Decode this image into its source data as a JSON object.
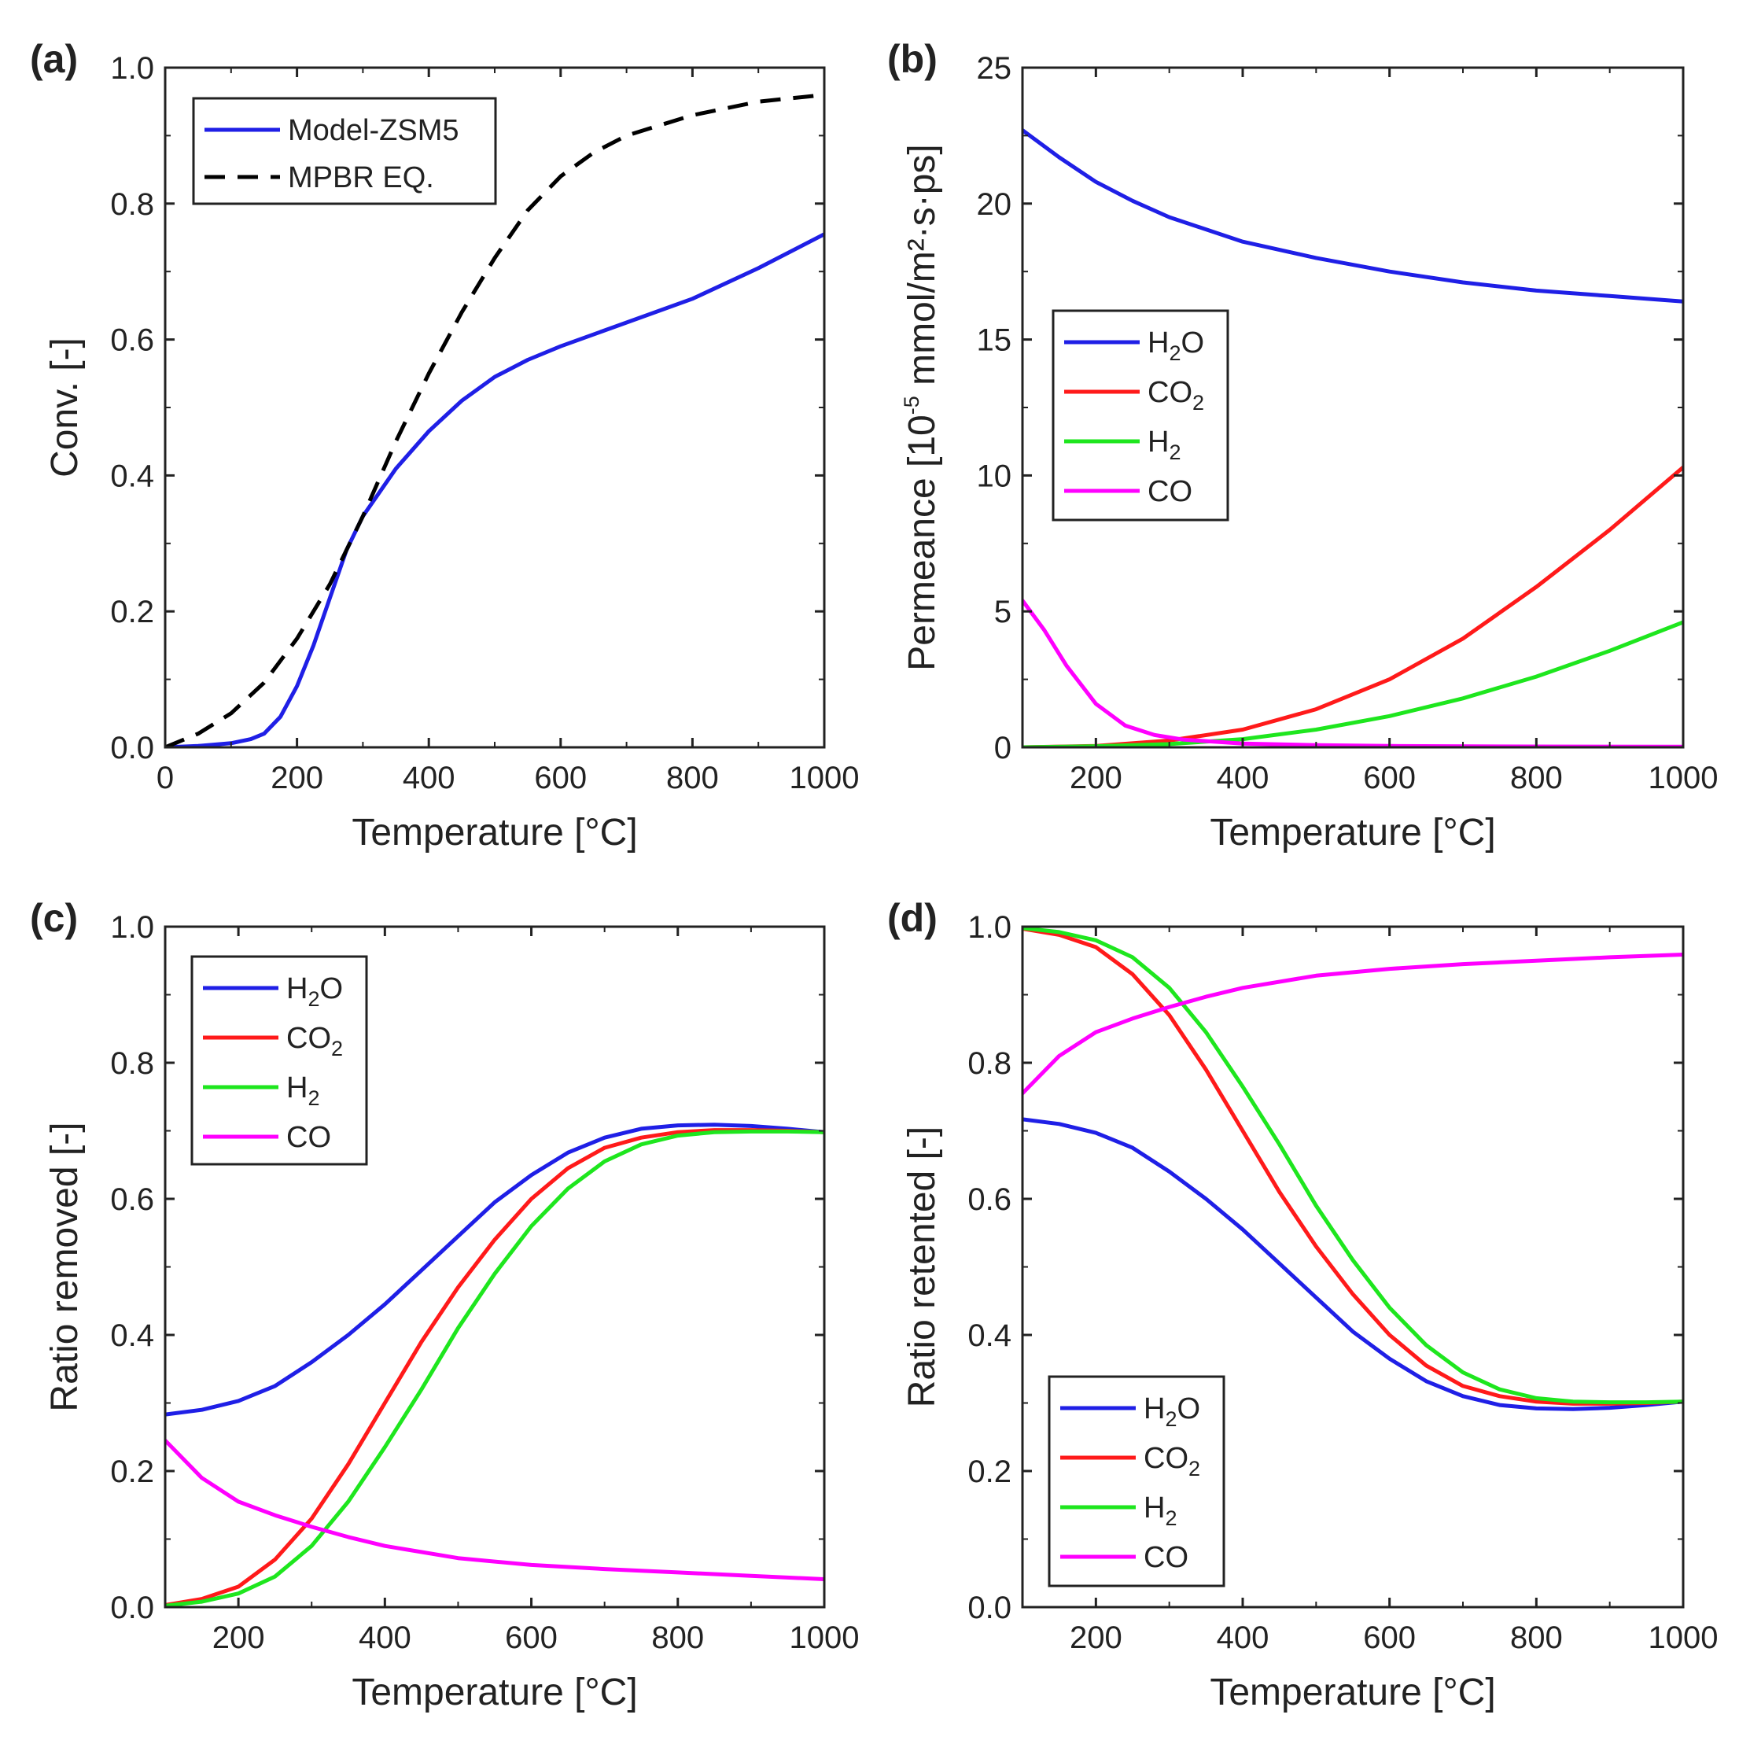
{
  "figure": {
    "panel_count": 4
  },
  "chart_data": [
    {
      "id": "a",
      "panel_label": "(a)",
      "type": "line",
      "title": "",
      "xlabel": "Temperature [°C]",
      "ylabel": "Conv. [-]",
      "xlim": [
        0,
        1000
      ],
      "ylim": [
        0,
        1.0
      ],
      "xticks": [
        0,
        200,
        400,
        600,
        800,
        1000
      ],
      "xtick_labels": [
        "0",
        "200",
        "400",
        "600",
        "800",
        "1000"
      ],
      "yticks": [
        0,
        0.2,
        0.4,
        0.6,
        0.8,
        1.0
      ],
      "ytick_labels": [
        "0.0",
        "0.2",
        "0.4",
        "0.6",
        "0.8",
        "1.0"
      ],
      "grid": false,
      "legend_position": "top-left",
      "series": [
        {
          "name": "Model-ZSM5",
          "color": "#1f1fe6",
          "dash": "solid",
          "x": [
            0,
            50,
            100,
            130,
            150,
            175,
            200,
            225,
            250,
            275,
            300,
            350,
            400,
            450,
            500,
            550,
            600,
            700,
            800,
            900,
            1000
          ],
          "y": [
            0,
            0.002,
            0.006,
            0.012,
            0.02,
            0.045,
            0.09,
            0.15,
            0.22,
            0.29,
            0.34,
            0.41,
            0.465,
            0.51,
            0.545,
            0.57,
            0.59,
            0.625,
            0.66,
            0.705,
            0.755
          ]
        },
        {
          "name": "MPBR EQ.",
          "color": "#000000",
          "dash": "dashed",
          "x": [
            0,
            50,
            100,
            150,
            200,
            250,
            300,
            350,
            400,
            450,
            500,
            550,
            600,
            650,
            700,
            750,
            800,
            850,
            900,
            950,
            1000
          ],
          "y": [
            0,
            0.02,
            0.05,
            0.095,
            0.16,
            0.24,
            0.34,
            0.45,
            0.55,
            0.64,
            0.72,
            0.79,
            0.84,
            0.875,
            0.9,
            0.915,
            0.93,
            0.94,
            0.95,
            0.955,
            0.96
          ]
        }
      ]
    },
    {
      "id": "b",
      "panel_label": "(b)",
      "type": "line",
      "title": "",
      "xlabel": "Temperature [°C]",
      "ylabel_parts": {
        "main": "Permeance [10",
        "sup": "-5",
        "tail": " mmol/m²·s·ps]"
      },
      "ylabel": "Permeance [10-5 mmol/m²·s·ps]",
      "xlim": [
        100,
        1000
      ],
      "ylim": [
        0,
        25
      ],
      "xticks": [
        200,
        400,
        600,
        800,
        1000
      ],
      "xtick_labels": [
        "200",
        "400",
        "600",
        "800",
        "1000"
      ],
      "yticks": [
        0,
        5,
        10,
        15,
        20,
        25
      ],
      "ytick_labels": [
        "0",
        "5",
        "10",
        "15",
        "20",
        "25"
      ],
      "grid": false,
      "legend_position": "center-left",
      "series": [
        {
          "name": "H2O",
          "label_main": "H",
          "label_sub": "2",
          "label_tail": "O",
          "color": "#1f1fe6",
          "x": [
            100,
            150,
            200,
            250,
            300,
            400,
            500,
            600,
            700,
            800,
            900,
            1000
          ],
          "y": [
            22.7,
            21.7,
            20.8,
            20.1,
            19.5,
            18.6,
            18.0,
            17.5,
            17.1,
            16.8,
            16.6,
            16.4
          ]
        },
        {
          "name": "CO2",
          "label_main": "CO",
          "label_sub": "2",
          "label_tail": "",
          "color": "#ff1a1a",
          "x": [
            100,
            200,
            300,
            400,
            500,
            600,
            700,
            800,
            900,
            1000
          ],
          "y": [
            0.0,
            0.05,
            0.25,
            0.65,
            1.4,
            2.5,
            4.0,
            5.9,
            8.0,
            10.3
          ]
        },
        {
          "name": "H2",
          "label_main": "H",
          "label_sub": "2",
          "label_tail": "",
          "color": "#1ee61e",
          "x": [
            100,
            200,
            300,
            400,
            500,
            600,
            700,
            800,
            900,
            1000
          ],
          "y": [
            0.0,
            0.04,
            0.12,
            0.3,
            0.65,
            1.15,
            1.8,
            2.6,
            3.55,
            4.6
          ]
        },
        {
          "name": "CO",
          "label_main": "CO",
          "label_sub": "",
          "label_tail": "",
          "color": "#ff00ff",
          "x": [
            100,
            130,
            160,
            200,
            240,
            280,
            320,
            400,
            500,
            600,
            800,
            1000
          ],
          "y": [
            5.4,
            4.3,
            3.0,
            1.6,
            0.8,
            0.45,
            0.28,
            0.14,
            0.08,
            0.05,
            0.03,
            0.02
          ]
        }
      ]
    },
    {
      "id": "c",
      "panel_label": "(c)",
      "type": "line",
      "title": "",
      "xlabel": "Temperature [°C]",
      "ylabel": "Ratio removed [-]",
      "xlim": [
        100,
        1000
      ],
      "ylim": [
        0,
        1.0
      ],
      "xticks": [
        200,
        400,
        600,
        800,
        1000
      ],
      "xtick_labels": [
        "200",
        "400",
        "600",
        "800",
        "1000"
      ],
      "yticks": [
        0,
        0.2,
        0.4,
        0.6,
        0.8,
        1.0
      ],
      "ytick_labels": [
        "0.0",
        "0.2",
        "0.4",
        "0.6",
        "0.8",
        "1.0"
      ],
      "grid": false,
      "legend_position": "top-left",
      "series": [
        {
          "name": "H2O",
          "label_main": "H",
          "label_sub": "2",
          "label_tail": "O",
          "color": "#1f1fe6",
          "x": [
            100,
            150,
            200,
            250,
            300,
            350,
            400,
            450,
            500,
            550,
            600,
            650,
            700,
            750,
            800,
            850,
            900,
            950,
            1000
          ],
          "y": [
            0.283,
            0.29,
            0.303,
            0.325,
            0.36,
            0.4,
            0.445,
            0.495,
            0.545,
            0.595,
            0.635,
            0.668,
            0.69,
            0.703,
            0.708,
            0.709,
            0.707,
            0.703,
            0.698
          ]
        },
        {
          "name": "CO2",
          "label_main": "CO",
          "label_sub": "2",
          "label_tail": "",
          "color": "#ff1a1a",
          "x": [
            100,
            150,
            200,
            250,
            300,
            350,
            400,
            450,
            500,
            550,
            600,
            650,
            700,
            750,
            800,
            850,
            900,
            950,
            1000
          ],
          "y": [
            0.003,
            0.012,
            0.03,
            0.07,
            0.13,
            0.21,
            0.3,
            0.39,
            0.47,
            0.54,
            0.6,
            0.645,
            0.675,
            0.69,
            0.698,
            0.701,
            0.701,
            0.7,
            0.698
          ]
        },
        {
          "name": "H2",
          "label_main": "H",
          "label_sub": "2",
          "label_tail": "",
          "color": "#1ee61e",
          "x": [
            100,
            150,
            200,
            250,
            300,
            350,
            400,
            450,
            500,
            550,
            600,
            650,
            700,
            750,
            800,
            850,
            900,
            950,
            1000
          ],
          "y": [
            0.002,
            0.008,
            0.02,
            0.045,
            0.09,
            0.155,
            0.235,
            0.32,
            0.41,
            0.49,
            0.56,
            0.615,
            0.655,
            0.68,
            0.693,
            0.698,
            0.699,
            0.699,
            0.698
          ]
        },
        {
          "name": "CO",
          "label_main": "CO",
          "label_sub": "",
          "label_tail": "",
          "color": "#ff00ff",
          "x": [
            100,
            150,
            200,
            250,
            300,
            350,
            400,
            500,
            600,
            700,
            800,
            900,
            1000
          ],
          "y": [
            0.245,
            0.19,
            0.155,
            0.135,
            0.118,
            0.103,
            0.09,
            0.072,
            0.062,
            0.056,
            0.051,
            0.046,
            0.041
          ]
        }
      ]
    },
    {
      "id": "d",
      "panel_label": "(d)",
      "type": "line",
      "title": "",
      "xlabel": "Temperature [°C]",
      "ylabel": "Ratio retented [-]",
      "xlim": [
        100,
        1000
      ],
      "ylim": [
        0,
        1.0
      ],
      "xticks": [
        200,
        400,
        600,
        800,
        1000
      ],
      "xtick_labels": [
        "200",
        "400",
        "600",
        "800",
        "1000"
      ],
      "yticks": [
        0,
        0.2,
        0.4,
        0.6,
        0.8,
        1.0
      ],
      "ytick_labels": [
        "0.0",
        "0.2",
        "0.4",
        "0.6",
        "0.8",
        "1.0"
      ],
      "grid": false,
      "legend_position": "bottom-left",
      "series": [
        {
          "name": "H2O",
          "label_main": "H",
          "label_sub": "2",
          "label_tail": "O",
          "color": "#1f1fe6",
          "x": [
            100,
            150,
            200,
            250,
            300,
            350,
            400,
            450,
            500,
            550,
            600,
            650,
            700,
            750,
            800,
            850,
            900,
            950,
            1000
          ],
          "y": [
            0.717,
            0.71,
            0.697,
            0.675,
            0.64,
            0.6,
            0.555,
            0.505,
            0.455,
            0.405,
            0.365,
            0.332,
            0.31,
            0.297,
            0.292,
            0.291,
            0.293,
            0.297,
            0.302
          ]
        },
        {
          "name": "CO2",
          "label_main": "CO",
          "label_sub": "2",
          "label_tail": "",
          "color": "#ff1a1a",
          "x": [
            100,
            150,
            200,
            250,
            300,
            350,
            400,
            450,
            500,
            550,
            600,
            650,
            700,
            750,
            800,
            850,
            900,
            950,
            1000
          ],
          "y": [
            0.997,
            0.988,
            0.97,
            0.93,
            0.87,
            0.79,
            0.7,
            0.61,
            0.53,
            0.46,
            0.4,
            0.355,
            0.325,
            0.31,
            0.302,
            0.299,
            0.299,
            0.3,
            0.302
          ]
        },
        {
          "name": "H2",
          "label_main": "H",
          "label_sub": "2",
          "label_tail": "",
          "color": "#1ee61e",
          "x": [
            100,
            150,
            200,
            250,
            300,
            350,
            400,
            450,
            500,
            550,
            600,
            650,
            700,
            750,
            800,
            850,
            900,
            950,
            1000
          ],
          "y": [
            0.998,
            0.992,
            0.98,
            0.955,
            0.91,
            0.845,
            0.765,
            0.68,
            0.59,
            0.51,
            0.44,
            0.385,
            0.345,
            0.32,
            0.307,
            0.302,
            0.301,
            0.301,
            0.302
          ]
        },
        {
          "name": "CO",
          "label_main": "CO",
          "label_sub": "",
          "label_tail": "",
          "color": "#ff00ff",
          "x": [
            100,
            150,
            200,
            250,
            300,
            350,
            400,
            500,
            600,
            700,
            800,
            900,
            1000
          ],
          "y": [
            0.755,
            0.81,
            0.845,
            0.865,
            0.882,
            0.897,
            0.91,
            0.928,
            0.938,
            0.945,
            0.95,
            0.955,
            0.959
          ]
        }
      ]
    }
  ]
}
